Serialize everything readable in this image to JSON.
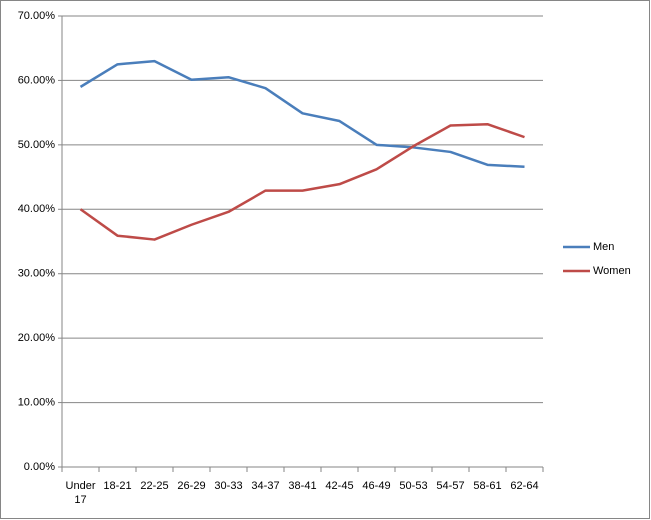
{
  "chart_data": {
    "type": "line",
    "categories": [
      "Under 17",
      "18-21",
      "22-25",
      "26-29",
      "30-33",
      "34-37",
      "38-41",
      "42-45",
      "46-49",
      "50-53",
      "54-57",
      "58-61",
      "62-64"
    ],
    "series": [
      {
        "name": "Men",
        "color": "#4a7ebb",
        "values": [
          59.0,
          62.5,
          63.0,
          60.1,
          60.5,
          58.8,
          54.9,
          53.7,
          50.0,
          49.6,
          48.9,
          46.9,
          46.6
        ]
      },
      {
        "name": "Women",
        "color": "#be4b48",
        "values": [
          40.0,
          35.9,
          35.3,
          37.6,
          39.6,
          42.9,
          42.9,
          43.9,
          46.2,
          49.8,
          53.0,
          53.2,
          51.2
        ]
      }
    ],
    "ylim": [
      0,
      70
    ],
    "yticks": [
      {
        "value": 0,
        "label": "0.00%"
      },
      {
        "value": 10,
        "label": "10.00%"
      },
      {
        "value": 20,
        "label": "20.00%"
      },
      {
        "value": 30,
        "label": "30.00%"
      },
      {
        "value": 40,
        "label": "40.00%"
      },
      {
        "value": 50,
        "label": "50.00%"
      },
      {
        "value": 60,
        "label": "60.00%"
      },
      {
        "value": 70,
        "label": "70.00%"
      }
    ],
    "grid": true,
    "legend": "right"
  }
}
